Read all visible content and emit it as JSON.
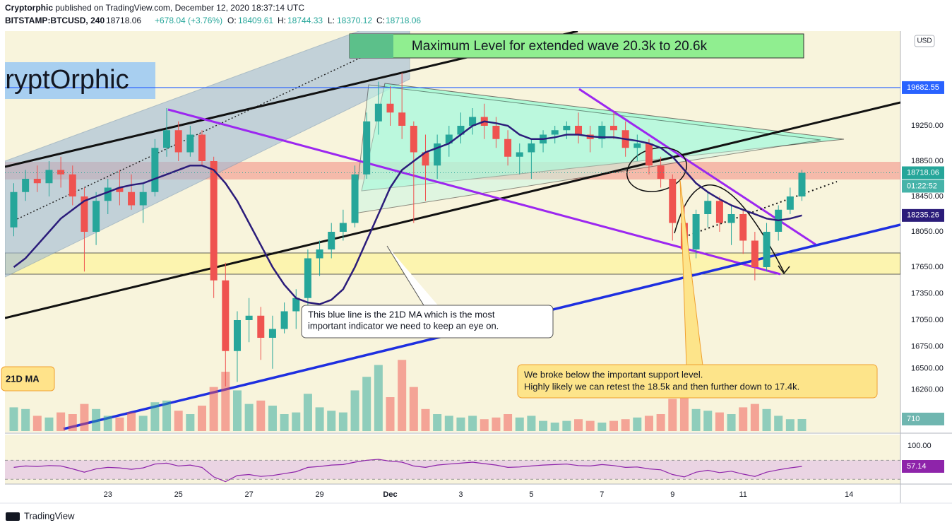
{
  "header": {
    "author": "Cryptorphic",
    "published": " published on TradingView.com, December 12, 2020 18:37:14 UTC",
    "symbol": "BITSTAMP:BTCUSD, 240",
    "last": "18718.06",
    "change": "+678.04 (+3.76%)",
    "o_label": "O:",
    "open": "18409.61",
    "h_label": "H:",
    "high": "18744.33",
    "l_label": "L:",
    "low": "18370.12",
    "c_label": "C:",
    "close": "18718.06",
    "currency": "USD"
  },
  "footer": {
    "brand": "TradingView"
  },
  "chart_data": {
    "type": "candlestick",
    "x": [
      -64,
      -56,
      -48,
      -40,
      -32,
      -24,
      -16,
      -8,
      0,
      8,
      16,
      24,
      32,
      40,
      48,
      56,
      64,
      72,
      80,
      88,
      96,
      104,
      112,
      120,
      128,
      136,
      144,
      152,
      160,
      168,
      176,
      184,
      192,
      200,
      208,
      216,
      224,
      232,
      240,
      248,
      256,
      264,
      272,
      280,
      288,
      296,
      304,
      312,
      320,
      328,
      336,
      344,
      352,
      360,
      368,
      376,
      384,
      392,
      400,
      408,
      416,
      424,
      432,
      440,
      448,
      456,
      464,
      472
    ],
    "xlim": [
      -70,
      539
    ],
    "xticks": [
      {
        "value": 0,
        "label": "23"
      },
      {
        "value": 48,
        "label": "25"
      },
      {
        "value": 96,
        "label": "27"
      },
      {
        "value": 144,
        "label": "29"
      },
      {
        "value": 192,
        "label": "Dec"
      },
      {
        "value": 240,
        "label": "3"
      },
      {
        "value": 288,
        "label": "5"
      },
      {
        "value": 336,
        "label": "7"
      },
      {
        "value": 384,
        "label": "9"
      },
      {
        "value": 432,
        "label": "11"
      },
      {
        "value": 504,
        "label": "14"
      }
    ],
    "ylim": [
      15794,
      20322
    ],
    "yticks": [
      {
        "value": 16260,
        "label": "16260.00"
      },
      {
        "value": 16500,
        "label": "16500.00"
      },
      {
        "value": 16750,
        "label": "16750.00"
      },
      {
        "value": 17050,
        "label": "17050.00"
      },
      {
        "value": 17350,
        "label": "17350.00"
      },
      {
        "value": 17650,
        "label": "17650.00"
      },
      {
        "value": 18050,
        "label": "18050.00"
      },
      {
        "value": 18450,
        "label": "18450.00"
      },
      {
        "value": 18850,
        "label": "18850.00"
      },
      {
        "value": 19250,
        "label": "19250.00"
      }
    ],
    "up_color": "#26a69a",
    "down_color": "#ef5350",
    "candles": [
      [
        18100,
        18600,
        18000,
        18500
      ],
      [
        18500,
        18750,
        18400,
        18650
      ],
      [
        18650,
        18800,
        18500,
        18600
      ],
      [
        18600,
        18850,
        18450,
        18750
      ],
      [
        18750,
        18900,
        18550,
        18700
      ],
      [
        18700,
        18800,
        18350,
        18450
      ],
      [
        18450,
        18550,
        17600,
        18050
      ],
      [
        18050,
        18500,
        17900,
        18400
      ],
      [
        18400,
        18650,
        18250,
        18550
      ],
      [
        18550,
        18750,
        18350,
        18500
      ],
      [
        18500,
        18700,
        18300,
        18350
      ],
      [
        18350,
        18600,
        18150,
        18500
      ],
      [
        18500,
        19100,
        18450,
        19000
      ],
      [
        19000,
        19450,
        18900,
        19200
      ],
      [
        19200,
        19300,
        18850,
        18950
      ],
      [
        18950,
        19250,
        18900,
        19150
      ],
      [
        19150,
        19200,
        18800,
        18850
      ],
      [
        18850,
        18900,
        17300,
        17500
      ],
      [
        17500,
        17700,
        16300,
        16700
      ],
      [
        16700,
        17150,
        16350,
        17050
      ],
      [
        17050,
        17300,
        16800,
        17100
      ],
      [
        17100,
        17200,
        16600,
        16850
      ],
      [
        16850,
        17100,
        16500,
        16950
      ],
      [
        16950,
        17250,
        16900,
        17150
      ],
      [
        17150,
        17400,
        16950,
        17300
      ],
      [
        17300,
        17850,
        17200,
        17750
      ],
      [
        17750,
        17950,
        17550,
        17850
      ],
      [
        17850,
        18150,
        17750,
        18050
      ],
      [
        18050,
        18300,
        17950,
        18150
      ],
      [
        18150,
        18800,
        18100,
        18700
      ],
      [
        18700,
        19400,
        18650,
        19300
      ],
      [
        19300,
        19750,
        19150,
        19500
      ],
      [
        19500,
        19700,
        19250,
        19400
      ],
      [
        19400,
        19850,
        19100,
        19250
      ],
      [
        19250,
        19300,
        18150,
        18950
      ],
      [
        18950,
        19150,
        18400,
        18800
      ],
      [
        18800,
        19150,
        18650,
        19050
      ],
      [
        19050,
        19250,
        18900,
        19150
      ],
      [
        19150,
        19400,
        19050,
        19250
      ],
      [
        19250,
        19450,
        19150,
        19350
      ],
      [
        19350,
        19500,
        19100,
        19250
      ],
      [
        19250,
        19350,
        19000,
        19100
      ],
      [
        19100,
        19200,
        18800,
        18900
      ],
      [
        18900,
        19050,
        18700,
        18950
      ],
      [
        18950,
        19100,
        18650,
        19050
      ],
      [
        19050,
        19200,
        18950,
        19150
      ],
      [
        19150,
        19250,
        19050,
        19200
      ],
      [
        19200,
        19300,
        19100,
        19250
      ],
      [
        19250,
        19400,
        19050,
        19150
      ],
      [
        19150,
        19250,
        18950,
        19100
      ],
      [
        19100,
        19300,
        19000,
        19250
      ],
      [
        19250,
        19400,
        19100,
        19200
      ],
      [
        19200,
        19300,
        18900,
        19000
      ],
      [
        19000,
        19150,
        18850,
        19050
      ],
      [
        19050,
        19100,
        18700,
        18800
      ],
      [
        18800,
        18900,
        18550,
        18650
      ],
      [
        18650,
        18700,
        17950,
        18150
      ],
      [
        18150,
        18350,
        17600,
        17850
      ],
      [
        17850,
        18300,
        17750,
        18250
      ],
      [
        18250,
        18500,
        18100,
        18400
      ],
      [
        18400,
        18450,
        18050,
        18150
      ],
      [
        18150,
        18350,
        17900,
        18250
      ],
      [
        18250,
        18300,
        17800,
        17950
      ],
      [
        17950,
        18050,
        17500,
        17650
      ],
      [
        17650,
        18150,
        17600,
        18050
      ],
      [
        18050,
        18350,
        17950,
        18300
      ],
      [
        18300,
        18550,
        18250,
        18450
      ],
      [
        18450,
        18750,
        18400,
        18718.06
      ]
    ],
    "volume": [
      1400,
      1300,
      900,
      800,
      1100,
      1000,
      1600,
      1300,
      900,
      800,
      1100,
      900,
      1700,
      1800,
      1200,
      1000,
      1500,
      2600,
      3500,
      2400,
      1600,
      1800,
      1500,
      1000,
      1100,
      2200,
      1400,
      1200,
      1100,
      2400,
      3200,
      3900,
      2000,
      4200,
      2600,
      1300,
      1000,
      900,
      800,
      900,
      700,
      800,
      1000,
      800,
      900,
      600,
      500,
      600,
      700,
      600,
      500,
      600,
      700,
      800,
      900,
      1000,
      1900,
      2000,
      1300,
      1200,
      1100,
      1000,
      1400,
      1600,
      1300,
      900,
      700,
      710
    ],
    "vlim": [
      0,
      23600
    ],
    "ma": {
      "name": "21D MA",
      "color": "#2b1c7a",
      "values": [
        17650,
        17750,
        17900,
        18050,
        18200,
        18300,
        18400,
        18450,
        18500,
        18550,
        18580,
        18600,
        18650,
        18700,
        18750,
        18800,
        18800,
        18750,
        18600,
        18400,
        18150,
        17900,
        17650,
        17450,
        17300,
        17250,
        17230,
        17280,
        17400,
        17650,
        17950,
        18250,
        18550,
        18750,
        18850,
        18950,
        19000,
        19050,
        19150,
        19250,
        19300,
        19280,
        19250,
        19150,
        19100,
        19100,
        19120,
        19150,
        19150,
        19130,
        19120,
        19120,
        19100,
        19080,
        19050,
        19000,
        18900,
        18750,
        18600,
        18500,
        18420,
        18350,
        18300,
        18250,
        18200,
        18180,
        18200,
        18235.26
      ]
    },
    "rsi": {
      "color": "#8e24aa",
      "values": [
        55,
        58,
        57,
        59,
        58,
        52,
        45,
        52,
        55,
        54,
        51,
        54,
        62,
        64,
        58,
        60,
        55,
        35,
        25,
        38,
        40,
        36,
        38,
        42,
        46,
        55,
        57,
        60,
        61,
        66,
        70,
        72,
        68,
        66,
        58,
        55,
        60,
        62,
        64,
        66,
        63,
        60,
        55,
        56,
        58,
        60,
        61,
        62,
        59,
        58,
        61,
        59,
        55,
        56,
        52,
        50,
        40,
        35,
        45,
        49,
        44,
        47,
        41,
        36,
        45,
        50,
        54,
        57.14
      ]
    },
    "rsi_ylim": [
      20,
      124
    ],
    "rsi_yticks": [
      {
        "value": 100,
        "label": "100.00"
      }
    ],
    "rsi_bands": [
      30,
      70
    ],
    "level": {
      "value": 19682.55,
      "color": "#2962ff"
    },
    "last_price": 18718.06,
    "last_color": "#26a69a",
    "countdown": "01:22:52",
    "annotations": {
      "banner": "Maximum Level for extended wave 20.3k to 20.6k",
      "logo": "KryptOrphic",
      "note_ma": [
        "This blue line is the 21D MA which is the most",
        "important indicator we need to keep an eye on."
      ],
      "note_support": [
        "We broke below the important support level.",
        "Highly likely we can retest the 18.5k and then further down to 17.4k."
      ]
    }
  }
}
